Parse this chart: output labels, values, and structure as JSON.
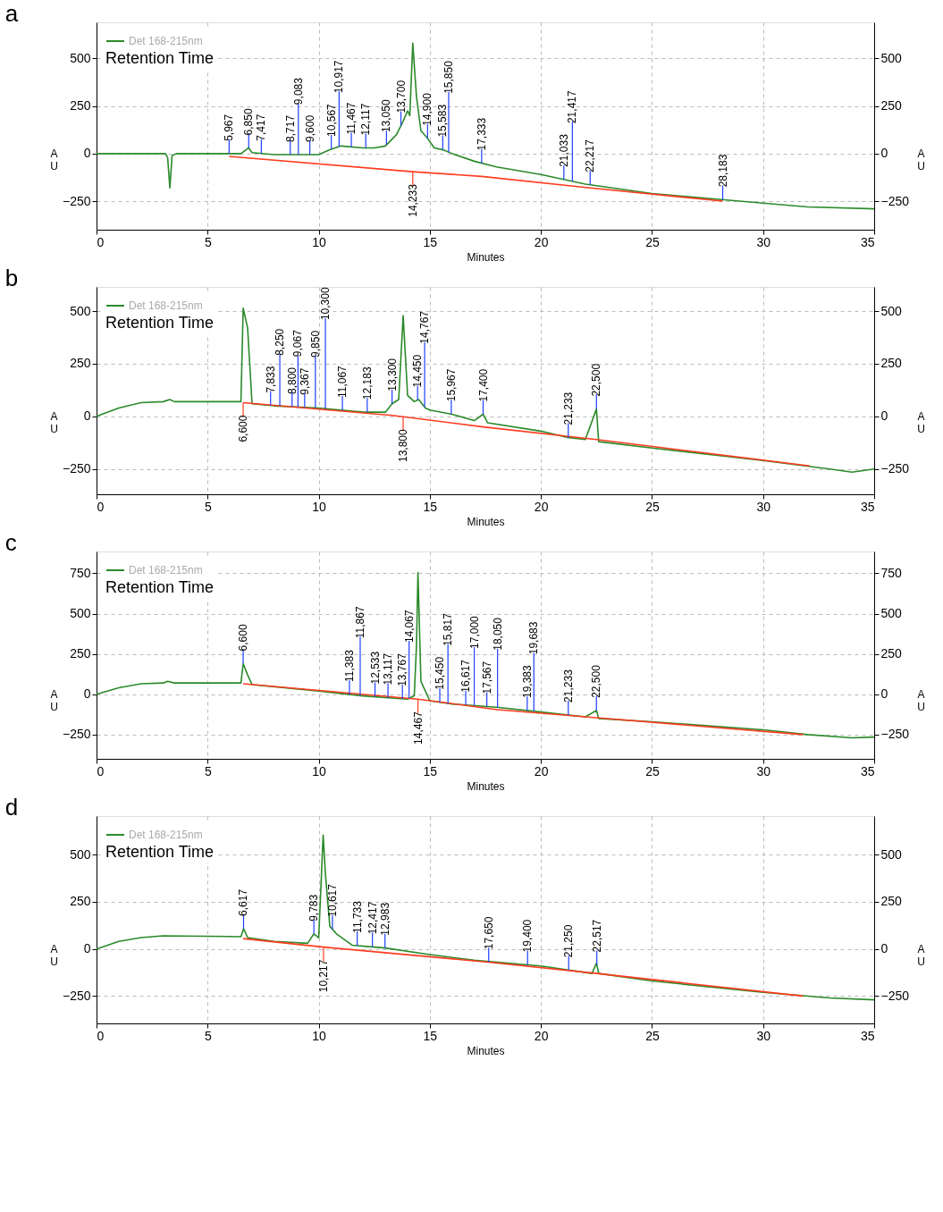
{
  "chart_data": [
    {
      "type": "line",
      "title": "a",
      "xlabel": "Minutes",
      "ylabel": "A U",
      "y2label": "A U",
      "legend_title": "Retention Time",
      "legend": "top left",
      "grid": true,
      "xlim": [
        0,
        35
      ],
      "xticks": [
        0,
        5,
        10,
        15,
        20,
        25,
        30,
        35
      ],
      "ylim": [
        -400,
        690
      ],
      "yticks": [
        -250,
        0,
        250,
        500
      ],
      "y2lim": [
        -400,
        690
      ],
      "y2ticks": [
        -250,
        0,
        250,
        500
      ],
      "series": [
        {
          "name": "Det 168-215nm",
          "color": "#2a8a2a",
          "x": [
            0,
            3.1,
            3.2,
            3.3,
            3.4,
            3.6,
            6.5,
            6.85,
            7.0,
            8,
            10,
            10.5,
            11,
            12,
            12.5,
            13,
            13.5,
            13.8,
            14.0,
            14.1,
            14.233,
            14.4,
            14.6,
            14.9,
            15.2,
            15.6,
            16,
            17,
            18,
            20,
            22,
            25,
            28,
            30,
            32,
            35
          ],
          "values": [
            0,
            0,
            -20,
            -180,
            -10,
            0,
            0,
            30,
            5,
            -5,
            -5,
            20,
            40,
            30,
            30,
            40,
            100,
            170,
            225,
            200,
            580,
            300,
            120,
            80,
            30,
            20,
            0,
            -40,
            -70,
            -110,
            -160,
            -210,
            -240,
            -260,
            -280,
            -290
          ]
        },
        {
          "color": "#ff3b1f",
          "x": [
            5.967,
            14.233,
            17.333,
            22.217,
            28.183
          ],
          "values": [
            -15,
            -95,
            -120,
            -180,
            -250
          ]
        }
      ],
      "annotations": [
        {
          "text": "5,967",
          "x": 5.967,
          "y": 0
        },
        {
          "text": "6,850",
          "x": 6.85,
          "y": 30
        },
        {
          "text": "7,417",
          "x": 7.417,
          "y": 1
        },
        {
          "text": "8,717",
          "x": 8.717,
          "y": -5
        },
        {
          "text": "9,083",
          "x": 9.083,
          "y": -5
        },
        {
          "text": "9,600",
          "x": 9.6,
          "y": -5
        },
        {
          "text": "10,567",
          "x": 10.567,
          "y": 23
        },
        {
          "text": "10,917",
          "x": 10.917,
          "y": 37
        },
        {
          "text": "11,467",
          "x": 11.467,
          "y": 35
        },
        {
          "text": "12,117",
          "x": 12.117,
          "y": 30
        },
        {
          "text": "13,050",
          "x": 13.05,
          "y": 46
        },
        {
          "text": "13,700",
          "x": 13.7,
          "y": 147
        },
        {
          "text": "14,233",
          "x": 14.233,
          "y": -95
        },
        {
          "text": "14,900",
          "x": 14.9,
          "y": 80
        },
        {
          "text": "15,583",
          "x": 15.583,
          "y": 20
        },
        {
          "text": "15,850",
          "x": 15.85,
          "y": 8
        },
        {
          "text": "17,333",
          "x": 17.333,
          "y": -50
        },
        {
          "text": "21,033",
          "x": 21.033,
          "y": -136
        },
        {
          "text": "21,417",
          "x": 21.417,
          "y": -145
        },
        {
          "text": "22,217",
          "x": 22.217,
          "y": -164
        },
        {
          "text": "28,183",
          "x": 28.183,
          "y": -242
        }
      ]
    },
    {
      "type": "line",
      "title": "b",
      "xlabel": "Minutes",
      "ylabel": "A U",
      "y2label": "A U",
      "legend_title": "Retention Time",
      "legend": "top left",
      "grid": true,
      "xlim": [
        0,
        35
      ],
      "xticks": [
        0,
        5,
        10,
        15,
        20,
        25,
        30,
        35
      ],
      "ylim": [
        -370,
        615
      ],
      "yticks": [
        -250,
        0,
        250,
        500
      ],
      "y2lim": [
        -370,
        615
      ],
      "y2ticks": [
        -250,
        0,
        250,
        500
      ],
      "series": [
        {
          "name": "Det 168-215nm",
          "color": "#2a8a2a",
          "x": [
            0,
            1,
            2,
            3,
            3.3,
            3.5,
            6.5,
            6.6,
            6.8,
            7.0,
            8,
            10,
            12,
            13,
            13.3,
            13.6,
            13.8,
            14.0,
            14.3,
            14.5,
            14.8,
            15,
            16,
            17,
            17.4,
            17.6,
            20,
            21.2,
            22,
            22.5,
            22.6,
            25,
            30,
            33,
            34,
            35
          ],
          "values": [
            0,
            40,
            65,
            70,
            80,
            70,
            70,
            514,
            420,
            60,
            50,
            40,
            20,
            20,
            60,
            80,
            479,
            100,
            70,
            80,
            40,
            30,
            10,
            -20,
            10,
            -30,
            -70,
            -100,
            -110,
            35,
            -120,
            -150,
            -210,
            -250,
            -265,
            -250
          ]
        },
        {
          "color": "#ff3b1f",
          "x": [
            6.6,
            13.3,
            13.8,
            17.4,
            22.5,
            32.1
          ],
          "values": [
            65,
            5,
            -2,
            -50,
            -110,
            -235
          ]
        }
      ],
      "annotations": [
        {
          "text": "6,600",
          "x": 6.6,
          "y": 65
        },
        {
          "text": "7,833",
          "x": 7.833,
          "y": 52
        },
        {
          "text": "8,250",
          "x": 8.25,
          "y": 49
        },
        {
          "text": "8,800",
          "x": 8.8,
          "y": 46
        },
        {
          "text": "9,067",
          "x": 9.067,
          "y": 45
        },
        {
          "text": "9,367",
          "x": 9.367,
          "y": 43
        },
        {
          "text": "9,850",
          "x": 9.85,
          "y": 41
        },
        {
          "text": "10,300",
          "x": 10.3,
          "y": 37
        },
        {
          "text": "11,067",
          "x": 11.067,
          "y": 29
        },
        {
          "text": "12,183",
          "x": 12.183,
          "y": 20
        },
        {
          "text": "13,300",
          "x": 13.3,
          "y": 60
        },
        {
          "text": "13,800",
          "x": 13.8,
          "y": -2
        },
        {
          "text": "14,450",
          "x": 14.45,
          "y": 78
        },
        {
          "text": "14,767",
          "x": 14.767,
          "y": 44
        },
        {
          "text": "15,967",
          "x": 15.967,
          "y": 11
        },
        {
          "text": "17,400",
          "x": 17.4,
          "y": 10
        },
        {
          "text": "21,233",
          "x": 21.233,
          "y": -100
        },
        {
          "text": "22,500",
          "x": 22.5,
          "y": 35
        }
      ]
    },
    {
      "type": "line",
      "title": "c",
      "xlabel": "Minutes",
      "ylabel": "A U",
      "y2label": "A U",
      "legend_title": "Retention Time",
      "legend": "top left",
      "grid": true,
      "xlim": [
        0,
        35
      ],
      "xticks": [
        0,
        5,
        10,
        15,
        20,
        25,
        30,
        35
      ],
      "ylim": [
        -400,
        885
      ],
      "yticks": [
        -250,
        0,
        250,
        500,
        750
      ],
      "y2lim": [
        -400,
        885
      ],
      "y2ticks": [
        -250,
        0,
        250,
        500,
        750
      ],
      "series": [
        {
          "name": "Det 168-215nm",
          "color": "#2a8a2a",
          "x": [
            0,
            1,
            2,
            3,
            3.2,
            3.5,
            6.5,
            6.6,
            6.8,
            7,
            10,
            12,
            14,
            14.3,
            14.4,
            14.467,
            14.6,
            15,
            16,
            18,
            20,
            22,
            22.5,
            22.6,
            25,
            30,
            32,
            34,
            35
          ],
          "values": [
            0,
            40,
            65,
            70,
            80,
            70,
            70,
            190,
            120,
            60,
            20,
            -10,
            -30,
            -10,
            300,
            755,
            80,
            -40,
            -60,
            -80,
            -110,
            -140,
            -100,
            -150,
            -170,
            -220,
            -250,
            -270,
            -265
          ]
        },
        {
          "color": "#ff3b1f",
          "x": [
            6.6,
            14.467,
            18.05,
            22.5,
            31.8
          ],
          "values": [
            65,
            -30,
            -95,
            -145,
            -250
          ]
        }
      ],
      "annotations": [
        {
          "text": "6,600",
          "x": 6.6,
          "y": 190
        },
        {
          "text": "11,383",
          "x": 11.383,
          "y": -1
        },
        {
          "text": "11,867",
          "x": 11.867,
          "y": -8
        },
        {
          "text": "12,533",
          "x": 12.533,
          "y": -15
        },
        {
          "text": "13,117",
          "x": 13.117,
          "y": -21
        },
        {
          "text": "13,767",
          "x": 13.767,
          "y": -28
        },
        {
          "text": "14,067",
          "x": 14.067,
          "y": -25
        },
        {
          "text": "14,467",
          "x": 14.467,
          "y": -30
        },
        {
          "text": "15,450",
          "x": 15.45,
          "y": -49
        },
        {
          "text": "15,817",
          "x": 15.817,
          "y": -56
        },
        {
          "text": "16,617",
          "x": 16.617,
          "y": -66
        },
        {
          "text": "17,000",
          "x": 17.0,
          "y": -70
        },
        {
          "text": "17,567",
          "x": 17.567,
          "y": -76
        },
        {
          "text": "18,050",
          "x": 18.05,
          "y": -81
        },
        {
          "text": "19,383",
          "x": 19.383,
          "y": -101
        },
        {
          "text": "19,683",
          "x": 19.683,
          "y": -105
        },
        {
          "text": "21,233",
          "x": 21.233,
          "y": -128
        },
        {
          "text": "22,500",
          "x": 22.5,
          "y": -100
        }
      ]
    },
    {
      "type": "line",
      "title": "d",
      "xlabel": "Minutes",
      "ylabel": "A U",
      "y2label": "A U",
      "legend_title": "Retention Time",
      "legend": "top left",
      "grid": true,
      "xlim": [
        0,
        35
      ],
      "xticks": [
        0,
        5,
        10,
        15,
        20,
        25,
        30,
        35
      ],
      "ylim": [
        -395,
        705
      ],
      "yticks": [
        -250,
        0,
        250,
        500
      ],
      "y2lim": [
        -395,
        705
      ],
      "y2ticks": [
        -250,
        0,
        250,
        500
      ],
      "series": [
        {
          "name": "Det 168-215nm",
          "color": "#2a8a2a",
          "x": [
            0,
            1,
            2,
            3,
            6.5,
            6.617,
            6.8,
            8,
            9.5,
            9.783,
            10.0,
            10.2,
            10.3,
            10.5,
            10.8,
            11.5,
            12.5,
            13,
            15,
            17,
            20,
            22.3,
            22.5,
            22.6,
            25,
            30,
            33,
            35
          ],
          "values": [
            0,
            40,
            60,
            70,
            65,
            108,
            60,
            40,
            30,
            80,
            60,
            604,
            400,
            120,
            80,
            20,
            10,
            5,
            -30,
            -60,
            -90,
            -130,
            -75,
            -130,
            -170,
            -230,
            -260,
            -270
          ]
        },
        {
          "color": "#ff3b1f",
          "x": [
            6.6,
            10.217,
            12.983,
            17.65,
            22.517,
            31.8
          ],
          "values": [
            55,
            10,
            -20,
            -70,
            -130,
            -250
          ]
        }
      ],
      "annotations": [
        {
          "text": "6,617",
          "x": 6.617,
          "y": 108
        },
        {
          "text": "9,783",
          "x": 9.783,
          "y": 80
        },
        {
          "text": "10,217",
          "x": 10.217,
          "y": 10
        },
        {
          "text": "10,617",
          "x": 10.617,
          "y": 104
        },
        {
          "text": "11,733",
          "x": 11.733,
          "y": 18
        },
        {
          "text": "12,417",
          "x": 12.417,
          "y": 11
        },
        {
          "text": "12,983",
          "x": 12.983,
          "y": 5
        },
        {
          "text": "17,650",
          "x": 17.65,
          "y": -69
        },
        {
          "text": "19,400",
          "x": 19.4,
          "y": -84
        },
        {
          "text": "21,250",
          "x": 21.25,
          "y": -112
        },
        {
          "text": "22,517",
          "x": 22.517,
          "y": -84
        }
      ]
    }
  ]
}
